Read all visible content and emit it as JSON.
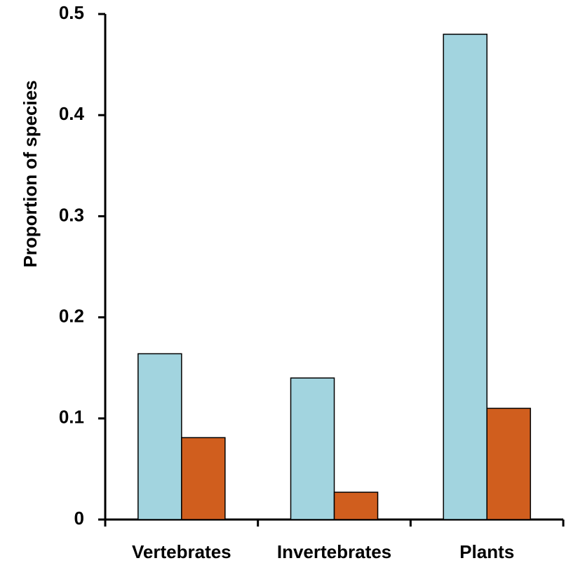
{
  "chart_data": {
    "type": "bar",
    "title": "",
    "xlabel": "",
    "ylabel": "Proportion of species",
    "categories": [
      "Vertebrates",
      "Invertebrates",
      "Plants"
    ],
    "series": [
      {
        "values": [
          0.164,
          0.14,
          0.48
        ],
        "color": "#a2d4df"
      },
      {
        "values": [
          0.081,
          0.027,
          0.11
        ],
        "color": "#d05e1e"
      }
    ],
    "ylim": [
      0,
      0.5
    ],
    "yticks": [
      {
        "value": 0,
        "label": "0"
      },
      {
        "value": 0.1,
        "label": "0.1"
      },
      {
        "value": 0.2,
        "label": "0.2"
      },
      {
        "value": 0.3,
        "label": "0.3"
      },
      {
        "value": 0.4,
        "label": "0.4"
      },
      {
        "value": 0.5,
        "label": "0.5"
      }
    ],
    "grid": false,
    "legend": "none"
  }
}
